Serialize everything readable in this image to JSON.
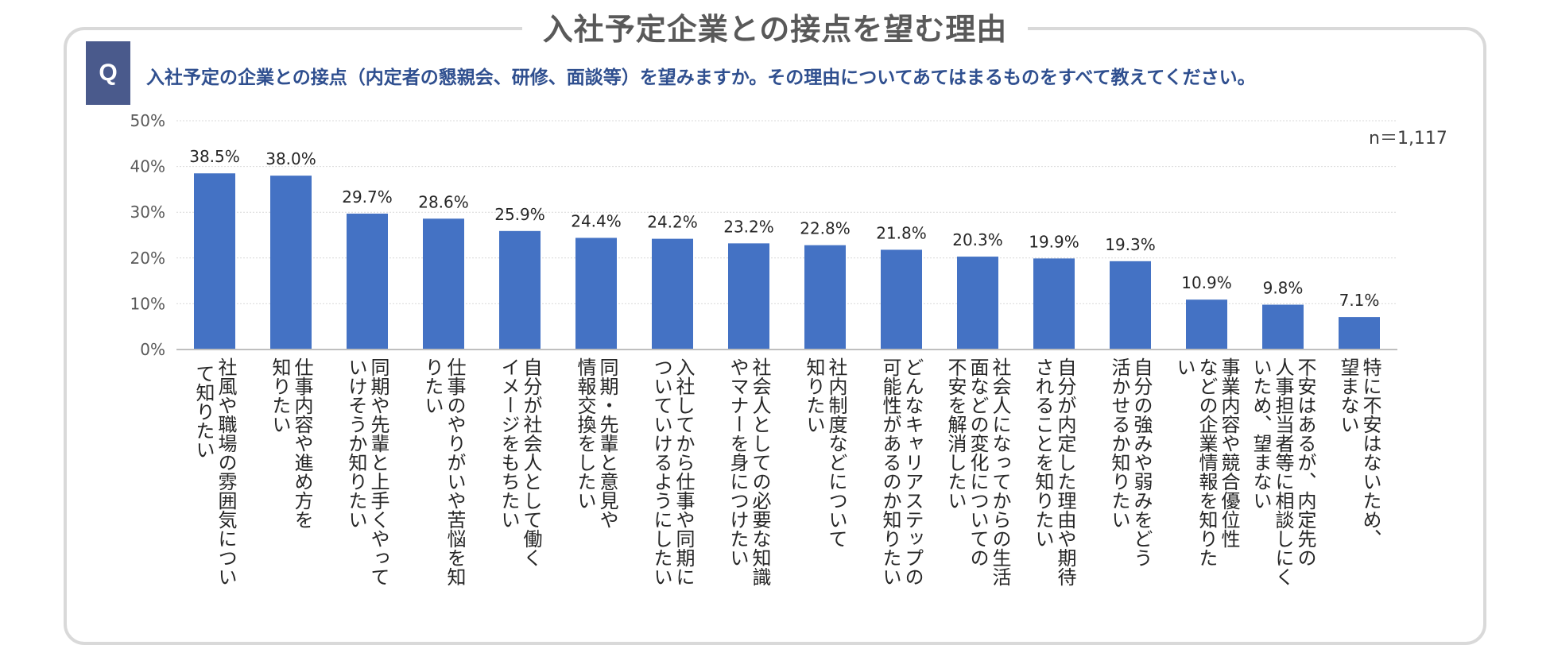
{
  "title": "入社予定企業との接点を望む理由",
  "question": {
    "marker": "Q",
    "text": "入社予定の企業との接点（内定者の懇親会、研修、面談等）を望みますか。その理由についてあてはまるものをすべて教えてください。"
  },
  "n_label": "n＝1,117",
  "colors": {
    "bar": "#4472c4",
    "frame": "#d9d9d9",
    "question_text": "#2f4f8f",
    "q_box": "#4a5a8c"
  },
  "chart_data": {
    "type": "bar",
    "title": "入社予定企業との接点を望む理由",
    "ylim": [
      0,
      50
    ],
    "yticks": [
      "0%",
      "10%",
      "20%",
      "30%",
      "40%",
      "50%"
    ],
    "grid": true,
    "categories": [
      "社風や職場の雰囲気について知りたい",
      "仕事内容や進め方を知りたい",
      "同期や先輩と上手くやっていけそうか知りたい",
      "仕事のやりがいや苦悩を知りたい",
      "自分が社会人として働くイメージをもちたい",
      "同期・先輩と意見や情報交換をしたい",
      "入社してから仕事や同期についていけるようにしたい",
      "社会人としての必要な知識やマナーを身につけたい",
      "社内制度などについて知りたい",
      "どんなキャリアステップの可能性があるのか知りたい",
      "社会人になってからの生活面などの変化についての不安を解消したい",
      "自分が内定した理由や期待されることを知りたい",
      "自分の強みや弱みをどう活かせるか知りたい",
      "事業内容や競合優位性などの企業情報を知りたい",
      "不安はあるが、内定先の人事担当者等に相談しにくいため、望まない",
      "特に不安はないため、望まない"
    ],
    "category_display": [
      "社風や職場の雰囲気につい\n て知りたい",
      "仕事内容や進め方を\n知りたい",
      "同期や先輩と上手くやって\nいけそうか知りたい",
      "仕事のやりがいや苦悩を知\nりたい",
      "自分が社会人として働く\nイメージをもちたい",
      "同期・先輩と意見や\n情報交換をしたい",
      "入社してから仕事や同期に\nついていけるようにしたい",
      "社会人としての必要な知識\nやマナーを身につけたい",
      "社内制度などについて\n知りたい",
      "どんなキャリアステップの\n可能性があるのか知りたい",
      "社会人になってからの生活\n面などの変化についての\n不安を解消したい",
      "自分が内定した理由や期待\nされることを知りたい",
      "自分の強みや弱みをどう\n活かせるか知りたい",
      "事業内容や競合優位性\nなどの企業情報を知りた\nい",
      "不安はあるが、内定先の\n人事担当者等に相談しにく\nいため、望まない",
      "特に不安はないため、\n望まない"
    ],
    "values": [
      38.5,
      38.0,
      29.7,
      28.6,
      25.9,
      24.4,
      24.2,
      23.2,
      22.8,
      21.8,
      20.3,
      19.9,
      19.3,
      10.9,
      9.8,
      7.1
    ],
    "labels": [
      "38.5%",
      "38.0%",
      "29.7%",
      "28.6%",
      "25.9%",
      "24.4%",
      "24.2%",
      "23.2%",
      "22.8%",
      "21.8%",
      "20.3%",
      "19.9%",
      "19.3%",
      "10.9%",
      "9.8%",
      "7.1%"
    ]
  }
}
